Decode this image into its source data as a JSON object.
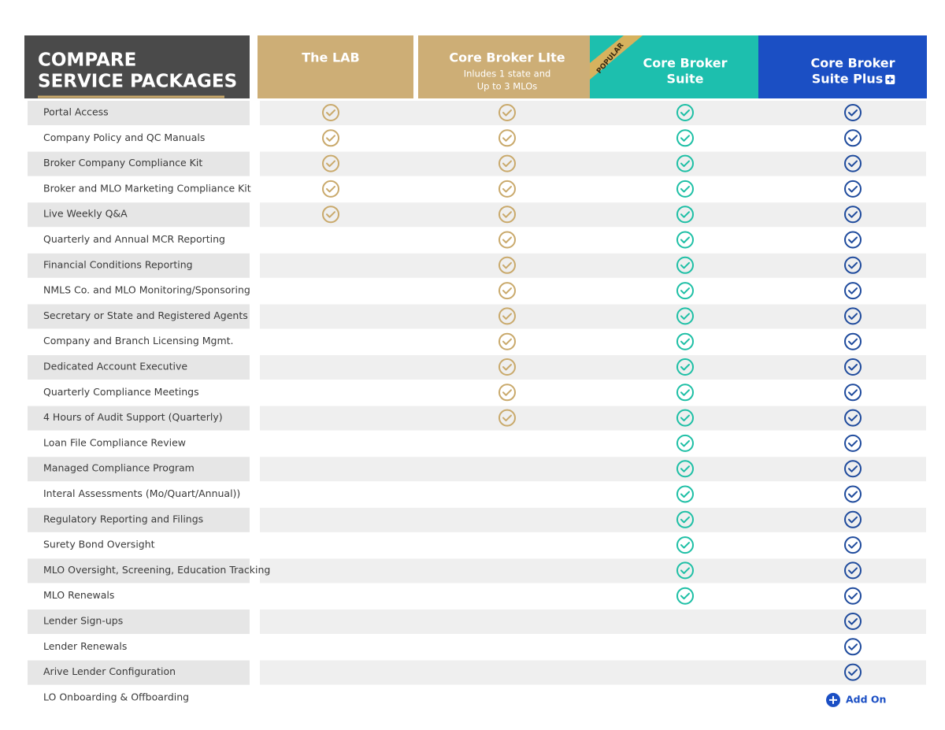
{
  "header": {
    "title_lines": [
      "COMPARE",
      "SERVICE PACKAGES"
    ],
    "badge": "POPULAR"
  },
  "columns": [
    {
      "name_lines": [
        "The LAB"
      ],
      "subtitle_lines": []
    },
    {
      "name_lines": [
        "Core Broker LIte"
      ],
      "subtitle_lines": [
        "Inludes 1 state and",
        "Up to 3 MLOs"
      ]
    },
    {
      "name_lines": [
        "Core Broker",
        "Suite"
      ],
      "subtitle_lines": []
    },
    {
      "name_lines": [
        "Core Broker",
        "Suite Plus"
      ],
      "subtitle_lines": []
    }
  ],
  "rows": [
    {
      "label": "Portal Access",
      "checks": [
        true,
        true,
        true,
        true
      ]
    },
    {
      "label": "Company Policy and QC Manuals",
      "checks": [
        true,
        true,
        true,
        true
      ]
    },
    {
      "label": "Broker Company Compliance Kit",
      "checks": [
        true,
        true,
        true,
        true
      ]
    },
    {
      "label": "Broker and MLO Marketing Compliance Kit",
      "checks": [
        true,
        true,
        true,
        true
      ]
    },
    {
      "label": "Live Weekly Q&A",
      "checks": [
        true,
        true,
        true,
        true
      ]
    },
    {
      "label": "Quarterly and Annual MCR Reporting",
      "checks": [
        false,
        true,
        true,
        true
      ]
    },
    {
      "label": "Financial Conditions Reporting",
      "checks": [
        false,
        true,
        true,
        true
      ]
    },
    {
      "label": "NMLS Co. and MLO Monitoring/Sponsoring",
      "checks": [
        false,
        true,
        true,
        true
      ]
    },
    {
      "label": "Secretary or State and Registered Agents",
      "checks": [
        false,
        true,
        true,
        true
      ]
    },
    {
      "label": "Company and Branch Licensing Mgmt.",
      "checks": [
        false,
        true,
        true,
        true
      ]
    },
    {
      "label": "Dedicated Account Executive",
      "checks": [
        false,
        true,
        true,
        true
      ]
    },
    {
      "label": "Quarterly Compliance Meetings",
      "checks": [
        false,
        true,
        true,
        true
      ]
    },
    {
      "label": "4 Hours of Audit Support (Quarterly)",
      "checks": [
        false,
        true,
        true,
        true
      ]
    },
    {
      "label": "Loan File Compliance Review",
      "checks": [
        false,
        false,
        true,
        true
      ]
    },
    {
      "label": "Managed Compliance Program",
      "checks": [
        false,
        false,
        true,
        true
      ]
    },
    {
      "label": "Interal Assessments (Mo/Quart/Annual))",
      "checks": [
        false,
        false,
        true,
        true
      ]
    },
    {
      "label": "Regulatory Reporting and Filings",
      "checks": [
        false,
        false,
        true,
        true
      ]
    },
    {
      "label": "Surety Bond Oversight",
      "checks": [
        false,
        false,
        true,
        true
      ]
    },
    {
      "label": "MLO Oversight, Screening, Education Tracking",
      "checks": [
        false,
        false,
        true,
        true
      ]
    },
    {
      "label": "MLO  Renewals",
      "checks": [
        false,
        false,
        true,
        true
      ]
    },
    {
      "label": "Lender Sign-ups",
      "checks": [
        false,
        false,
        false,
        true
      ]
    },
    {
      "label": "Lender Renewals",
      "checks": [
        false,
        false,
        false,
        true
      ]
    },
    {
      "label": "Arive Lender Configuration",
      "checks": [
        false,
        false,
        false,
        true
      ]
    },
    {
      "label": "LO Onboarding & Offboarding",
      "checks": [
        false,
        false,
        false,
        false
      ],
      "note": "Add On"
    }
  ]
}
